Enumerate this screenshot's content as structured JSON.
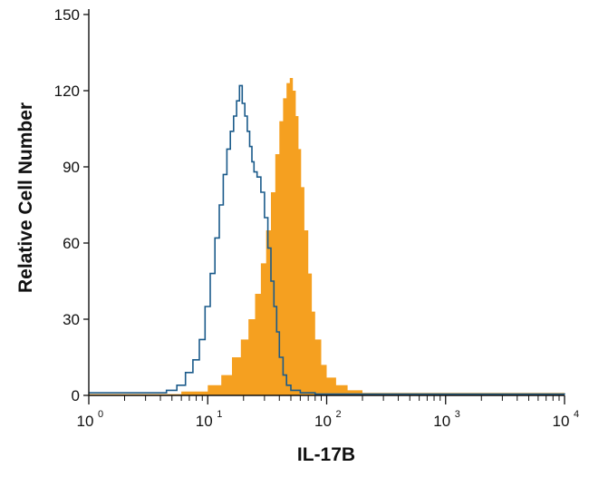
{
  "chart_data": {
    "type": "area",
    "xlabel": "IL-17B",
    "ylabel": "Relative Cell Number",
    "xscale": "log",
    "xlim": [
      1,
      10000
    ],
    "ylim": [
      0,
      150
    ],
    "x_ticks": [
      {
        "base": "10",
        "exp": "0"
      },
      {
        "base": "10",
        "exp": "1"
      },
      {
        "base": "10",
        "exp": "2"
      },
      {
        "base": "10",
        "exp": "3"
      },
      {
        "base": "10",
        "exp": "4"
      }
    ],
    "y_ticks": [
      "0",
      "30",
      "60",
      "90",
      "120",
      "150"
    ],
    "grid": false,
    "legend": "none",
    "series": [
      {
        "style": "outline",
        "color": "#1a5a8a",
        "x": [
          1,
          3.5,
          4.5,
          5.5,
          6.5,
          7.5,
          8.5,
          9.5,
          10.5,
          11.5,
          12.5,
          13.5,
          14.5,
          15.5,
          16.5,
          17.5,
          18.5,
          19.5,
          20.5,
          21.5,
          22.5,
          23.5,
          24.5,
          26,
          28,
          30,
          32,
          34,
          36,
          38,
          40,
          43,
          46,
          50,
          60,
          80,
          10000
        ],
        "y": [
          1,
          1,
          2,
          4,
          9,
          14,
          22,
          35,
          48,
          62,
          75,
          87,
          97,
          104,
          110,
          116,
          122,
          115,
          110,
          104,
          98,
          92,
          88,
          86,
          80,
          70,
          58,
          45,
          35,
          25,
          15,
          8,
          4,
          2,
          1,
          0.5,
          0.3
        ]
      },
      {
        "style": "filled",
        "color": "#f5a020",
        "x": [
          1,
          3,
          6,
          10,
          13,
          16,
          19,
          22,
          25,
          28,
          31,
          34,
          37,
          40,
          43,
          46,
          49,
          52,
          55,
          58,
          61,
          65,
          70,
          75,
          80,
          90,
          100,
          120,
          150,
          200,
          10000
        ],
        "y": [
          0.5,
          0.5,
          1.5,
          4,
          8,
          15,
          22,
          30,
          40,
          52,
          65,
          80,
          95,
          108,
          117,
          123,
          125,
          120,
          110,
          97,
          82,
          65,
          48,
          33,
          22,
          12,
          7,
          4,
          2,
          1,
          0.3
        ]
      }
    ]
  }
}
